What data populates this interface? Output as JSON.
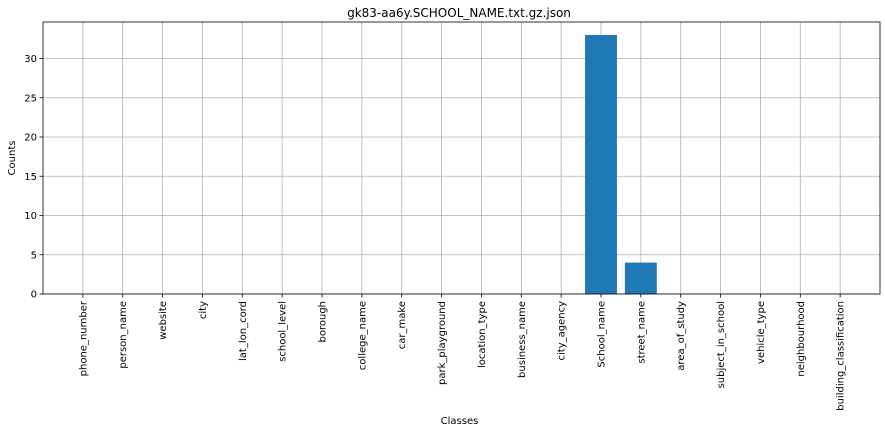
{
  "chart_data": {
    "type": "bar",
    "title": "gk83-aa6y.SCHOOL_NAME.txt.gz.json",
    "xlabel": "Classes",
    "ylabel": "Counts",
    "categories": [
      "phone_number",
      "person_name",
      "website",
      "city",
      "lat_lon_cord",
      "school_level",
      "borough",
      "college_name",
      "car_make",
      "park_playground",
      "location_type",
      "business_name",
      "city_agency",
      "School_name",
      "street_name",
      "area_of_study",
      "subject_in_school",
      "vehicle_type",
      "neighbourhood",
      "building_classification"
    ],
    "values": [
      0,
      0,
      0,
      0,
      0,
      0,
      0,
      0,
      0,
      0,
      0,
      0,
      0,
      33,
      4,
      0,
      0,
      0,
      0,
      0
    ],
    "ylim": [
      0,
      34.65
    ],
    "yticks": [
      0,
      5,
      10,
      15,
      20,
      25,
      30
    ],
    "grid": true,
    "colors": {
      "bar": "#1f77b4",
      "grid": "#b0b0b0"
    }
  }
}
